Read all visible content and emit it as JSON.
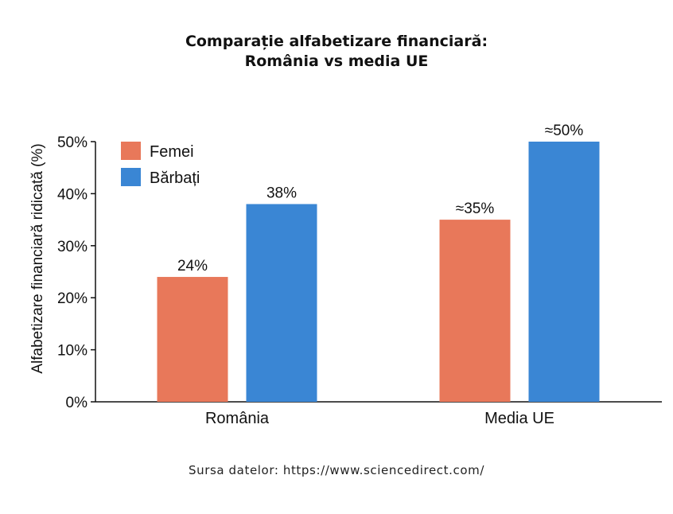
{
  "chart_data": {
    "type": "bar",
    "title_lines": [
      "Comparație alfabetizare financiară:",
      "România vs media UE"
    ],
    "ylabel": "Alfabetizare financiară ridicată (%)",
    "xlabel": "",
    "categories": [
      "România",
      "Media UE"
    ],
    "ylim": [
      0,
      50
    ],
    "yticks": [
      "0%",
      "10%",
      "20%",
      "30%",
      "40%",
      "50%"
    ],
    "ytick_values": [
      0,
      10,
      20,
      30,
      40,
      50
    ],
    "series": [
      {
        "name": "Femei",
        "color": "#e8785a",
        "values": [
          24,
          35
        ],
        "labels": [
          "24%",
          "≈35%"
        ]
      },
      {
        "name": "Bărbați",
        "color": "#3a86d4",
        "values": [
          38,
          50
        ],
        "labels": [
          "38%",
          "≈50%"
        ]
      }
    ],
    "legend_position": "top-left",
    "grid": false
  },
  "source_text": "Sursa datelor: https://www.sciencedirect.com/"
}
